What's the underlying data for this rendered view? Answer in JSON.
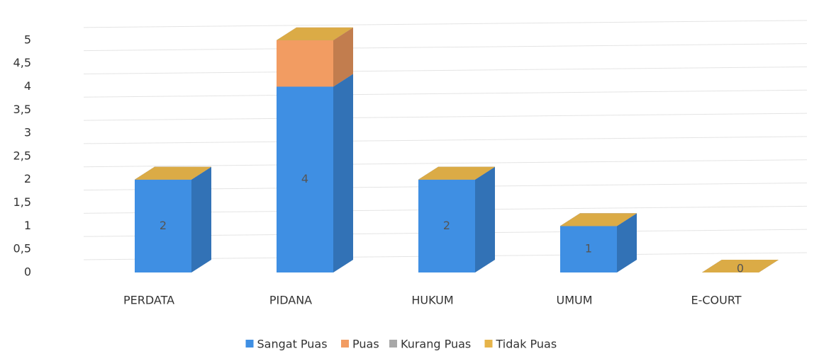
{
  "chart_data": {
    "type": "bar3d_stacked",
    "categories": [
      "PERDATA",
      "PIDANA",
      "HUKUM",
      "UMUM",
      "E-COURT"
    ],
    "series": [
      {
        "name": "Sangat Puas",
        "color": "#3f8fe3",
        "values": [
          2,
          4,
          2,
          1,
          0
        ]
      },
      {
        "name": "Puas",
        "color": "#f29c62",
        "values": [
          0,
          1,
          0,
          0,
          0
        ]
      },
      {
        "name": "Kurang Puas",
        "color": "#a8a8a8",
        "values": [
          0,
          0,
          0,
          0,
          0
        ]
      },
      {
        "name": "Tidak Puas",
        "color": "#e6b44a",
        "values": [
          0,
          0,
          0,
          0,
          0
        ]
      }
    ],
    "ylim": [
      0,
      5.5
    ],
    "yticks": [
      0,
      {
        "value": 0.5,
        "label": "0,5"
      },
      1,
      {
        "value": 1.5,
        "label": "1,5"
      },
      2,
      {
        "value": 2.5,
        "label": "2,5"
      },
      3,
      {
        "value": 3.5,
        "label": "3,5"
      },
      4,
      {
        "value": 4.5,
        "label": "4,5"
      },
      5
    ],
    "grid": true,
    "legend": "bottom"
  }
}
